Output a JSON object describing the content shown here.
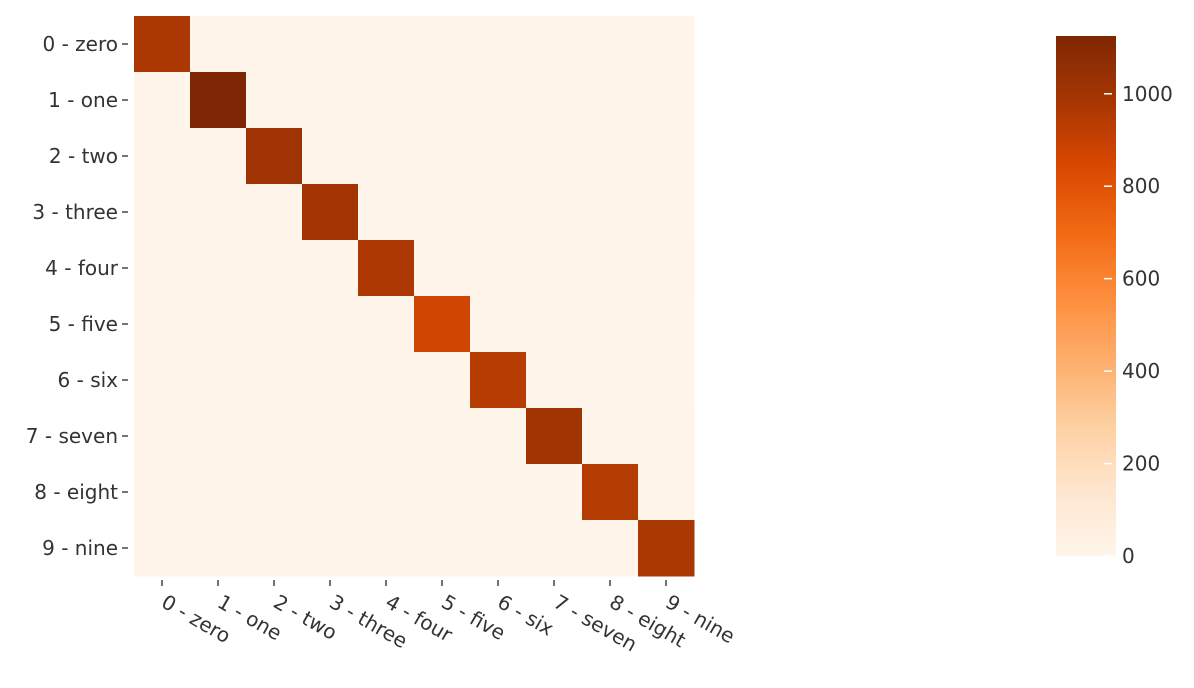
{
  "chart_data": {
    "type": "heatmap",
    "title": "",
    "xlabel": "",
    "ylabel": "",
    "x_categories": [
      "0 - zero",
      "1 - one",
      "2 - two",
      "3 - three",
      "4 - four",
      "5 - five",
      "6 - six",
      "7 - seven",
      "8 - eight",
      "9 - nine"
    ],
    "y_categories": [
      "0 - zero",
      "1 - one",
      "2 - two",
      "3 - three",
      "4 - four",
      "5 - five",
      "6 - six",
      "7 - seven",
      "8 - eight",
      "9 - nine"
    ],
    "z": [
      [
        970,
        0,
        1,
        0,
        0,
        2,
        4,
        1,
        2,
        0
      ],
      [
        0,
        1125,
        2,
        1,
        0,
        1,
        2,
        1,
        3,
        0
      ],
      [
        3,
        2,
        1010,
        4,
        2,
        0,
        2,
        5,
        4,
        0
      ],
      [
        0,
        0,
        3,
        990,
        0,
        6,
        0,
        4,
        4,
        3
      ],
      [
        1,
        0,
        2,
        0,
        965,
        0,
        4,
        1,
        1,
        8
      ],
      [
        2,
        0,
        0,
        7,
        1,
        870,
        5,
        1,
        4,
        2
      ],
      [
        4,
        2,
        1,
        0,
        6,
        3,
        940,
        0,
        2,
        0
      ],
      [
        1,
        3,
        8,
        2,
        1,
        0,
        0,
        1005,
        2,
        6
      ],
      [
        3,
        1,
        3,
        5,
        3,
        4,
        2,
        3,
        945,
        5
      ],
      [
        3,
        4,
        0,
        5,
        10,
        3,
        1,
        7,
        4,
        972
      ]
    ],
    "zlim": [
      0,
      1125
    ],
    "colorscale": [
      [
        0.0,
        "#fff5eb"
      ],
      [
        0.125,
        "#fee6ce"
      ],
      [
        0.25,
        "#fdd0a2"
      ],
      [
        0.375,
        "#fdae6b"
      ],
      [
        0.5,
        "#fd8d3c"
      ],
      [
        0.625,
        "#f16913"
      ],
      [
        0.75,
        "#d94801"
      ],
      [
        0.875,
        "#a63603"
      ],
      [
        1.0,
        "#7f2704"
      ]
    ],
    "colorbar": {
      "ticks": [
        0,
        200,
        400,
        600,
        800,
        1000
      ],
      "tick_labels": [
        "0",
        "200",
        "400",
        "600",
        "800",
        "1000"
      ]
    }
  }
}
